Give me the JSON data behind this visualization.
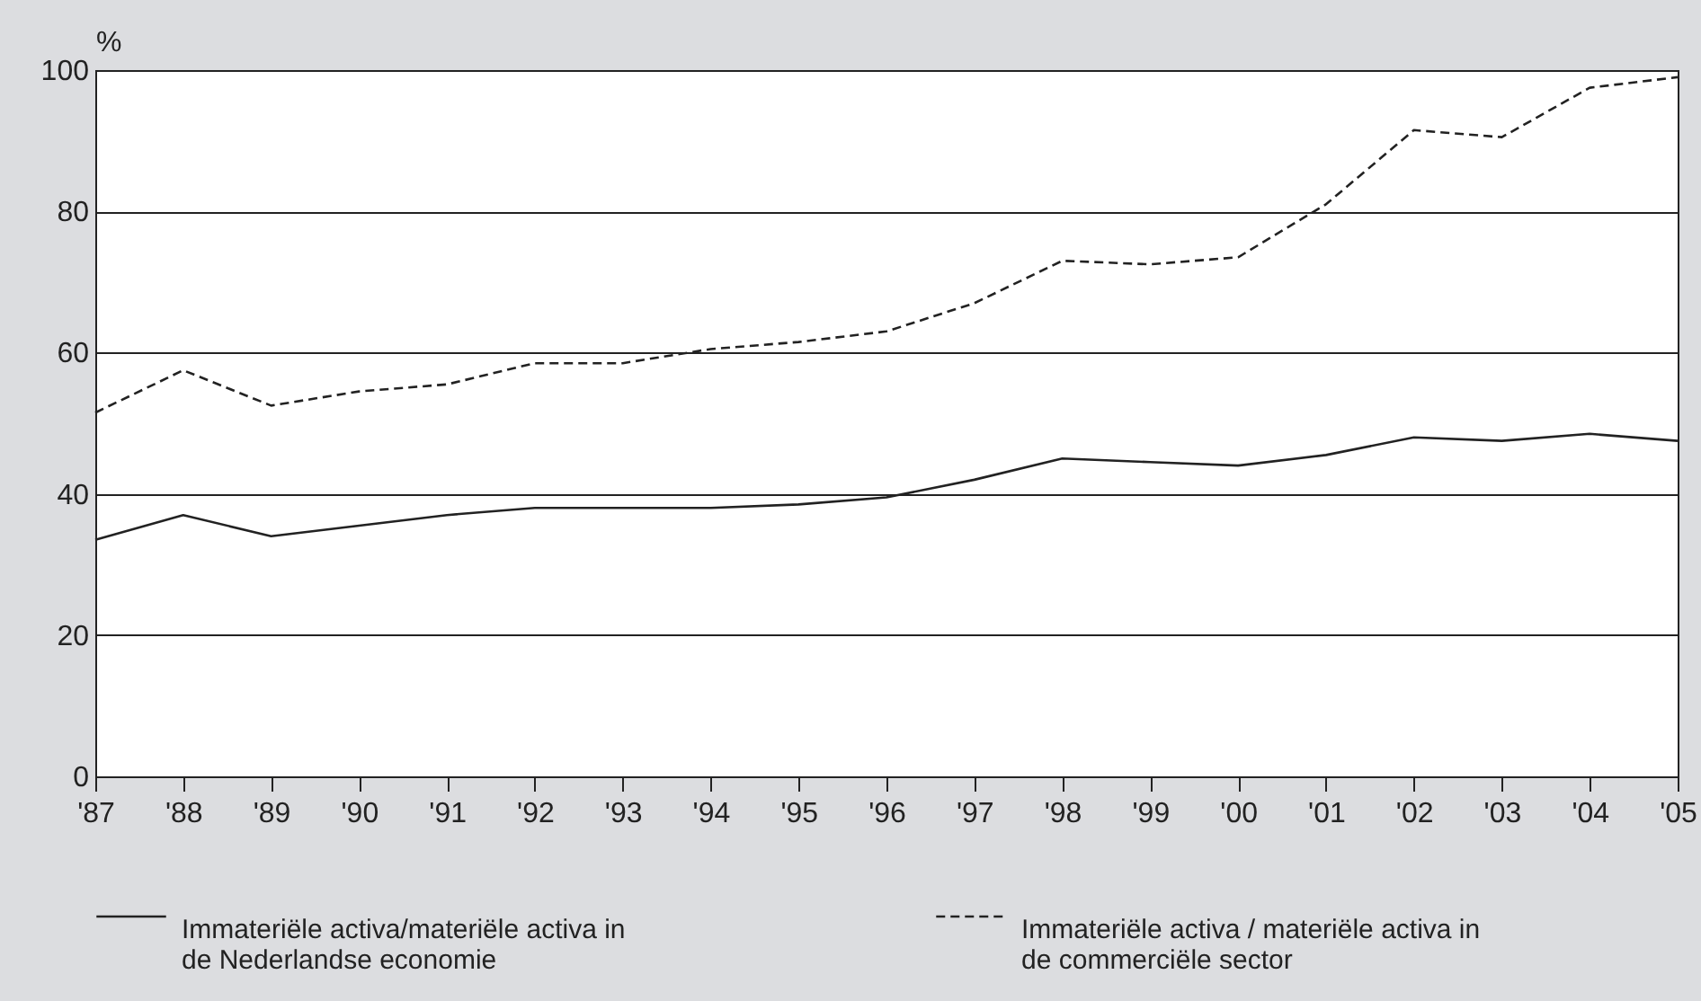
{
  "chart_data": {
    "type": "line",
    "ylabel": "%",
    "categories": [
      "'87",
      "'88",
      "'89",
      "'90",
      "'91",
      "'92",
      "'93",
      "'94",
      "'95",
      "'96",
      "'97",
      "'98",
      "'99",
      "'00",
      "'01",
      "'02",
      "'03",
      "'04",
      "'05"
    ],
    "series": [
      {
        "name": "Immateriële activa/materiële activa in de Nederlandse economie",
        "color": "#222222",
        "line_style": "solid",
        "values": [
          33.5,
          37,
          34,
          35.5,
          37,
          38,
          38,
          38,
          38.5,
          39.5,
          42,
          45,
          44.5,
          44,
          45.5,
          48,
          47.5,
          48.5,
          47.5
        ]
      },
      {
        "name": "Immateriële activa / materiële activa in de commerciële sector",
        "color": "#222222",
        "line_style": "dashed",
        "values": [
          51.5,
          57.5,
          52.5,
          54.5,
          55.5,
          58.5,
          58.5,
          60.5,
          61.5,
          63,
          67,
          73,
          72.5,
          73.5,
          81,
          91.5,
          90.5,
          97.5,
          99
        ]
      }
    ],
    "ylim": [
      0,
      100
    ],
    "yticks": [
      0,
      20,
      40,
      60,
      80,
      100
    ],
    "grid": "y",
    "legend": "bottom",
    "marker": "none"
  }
}
